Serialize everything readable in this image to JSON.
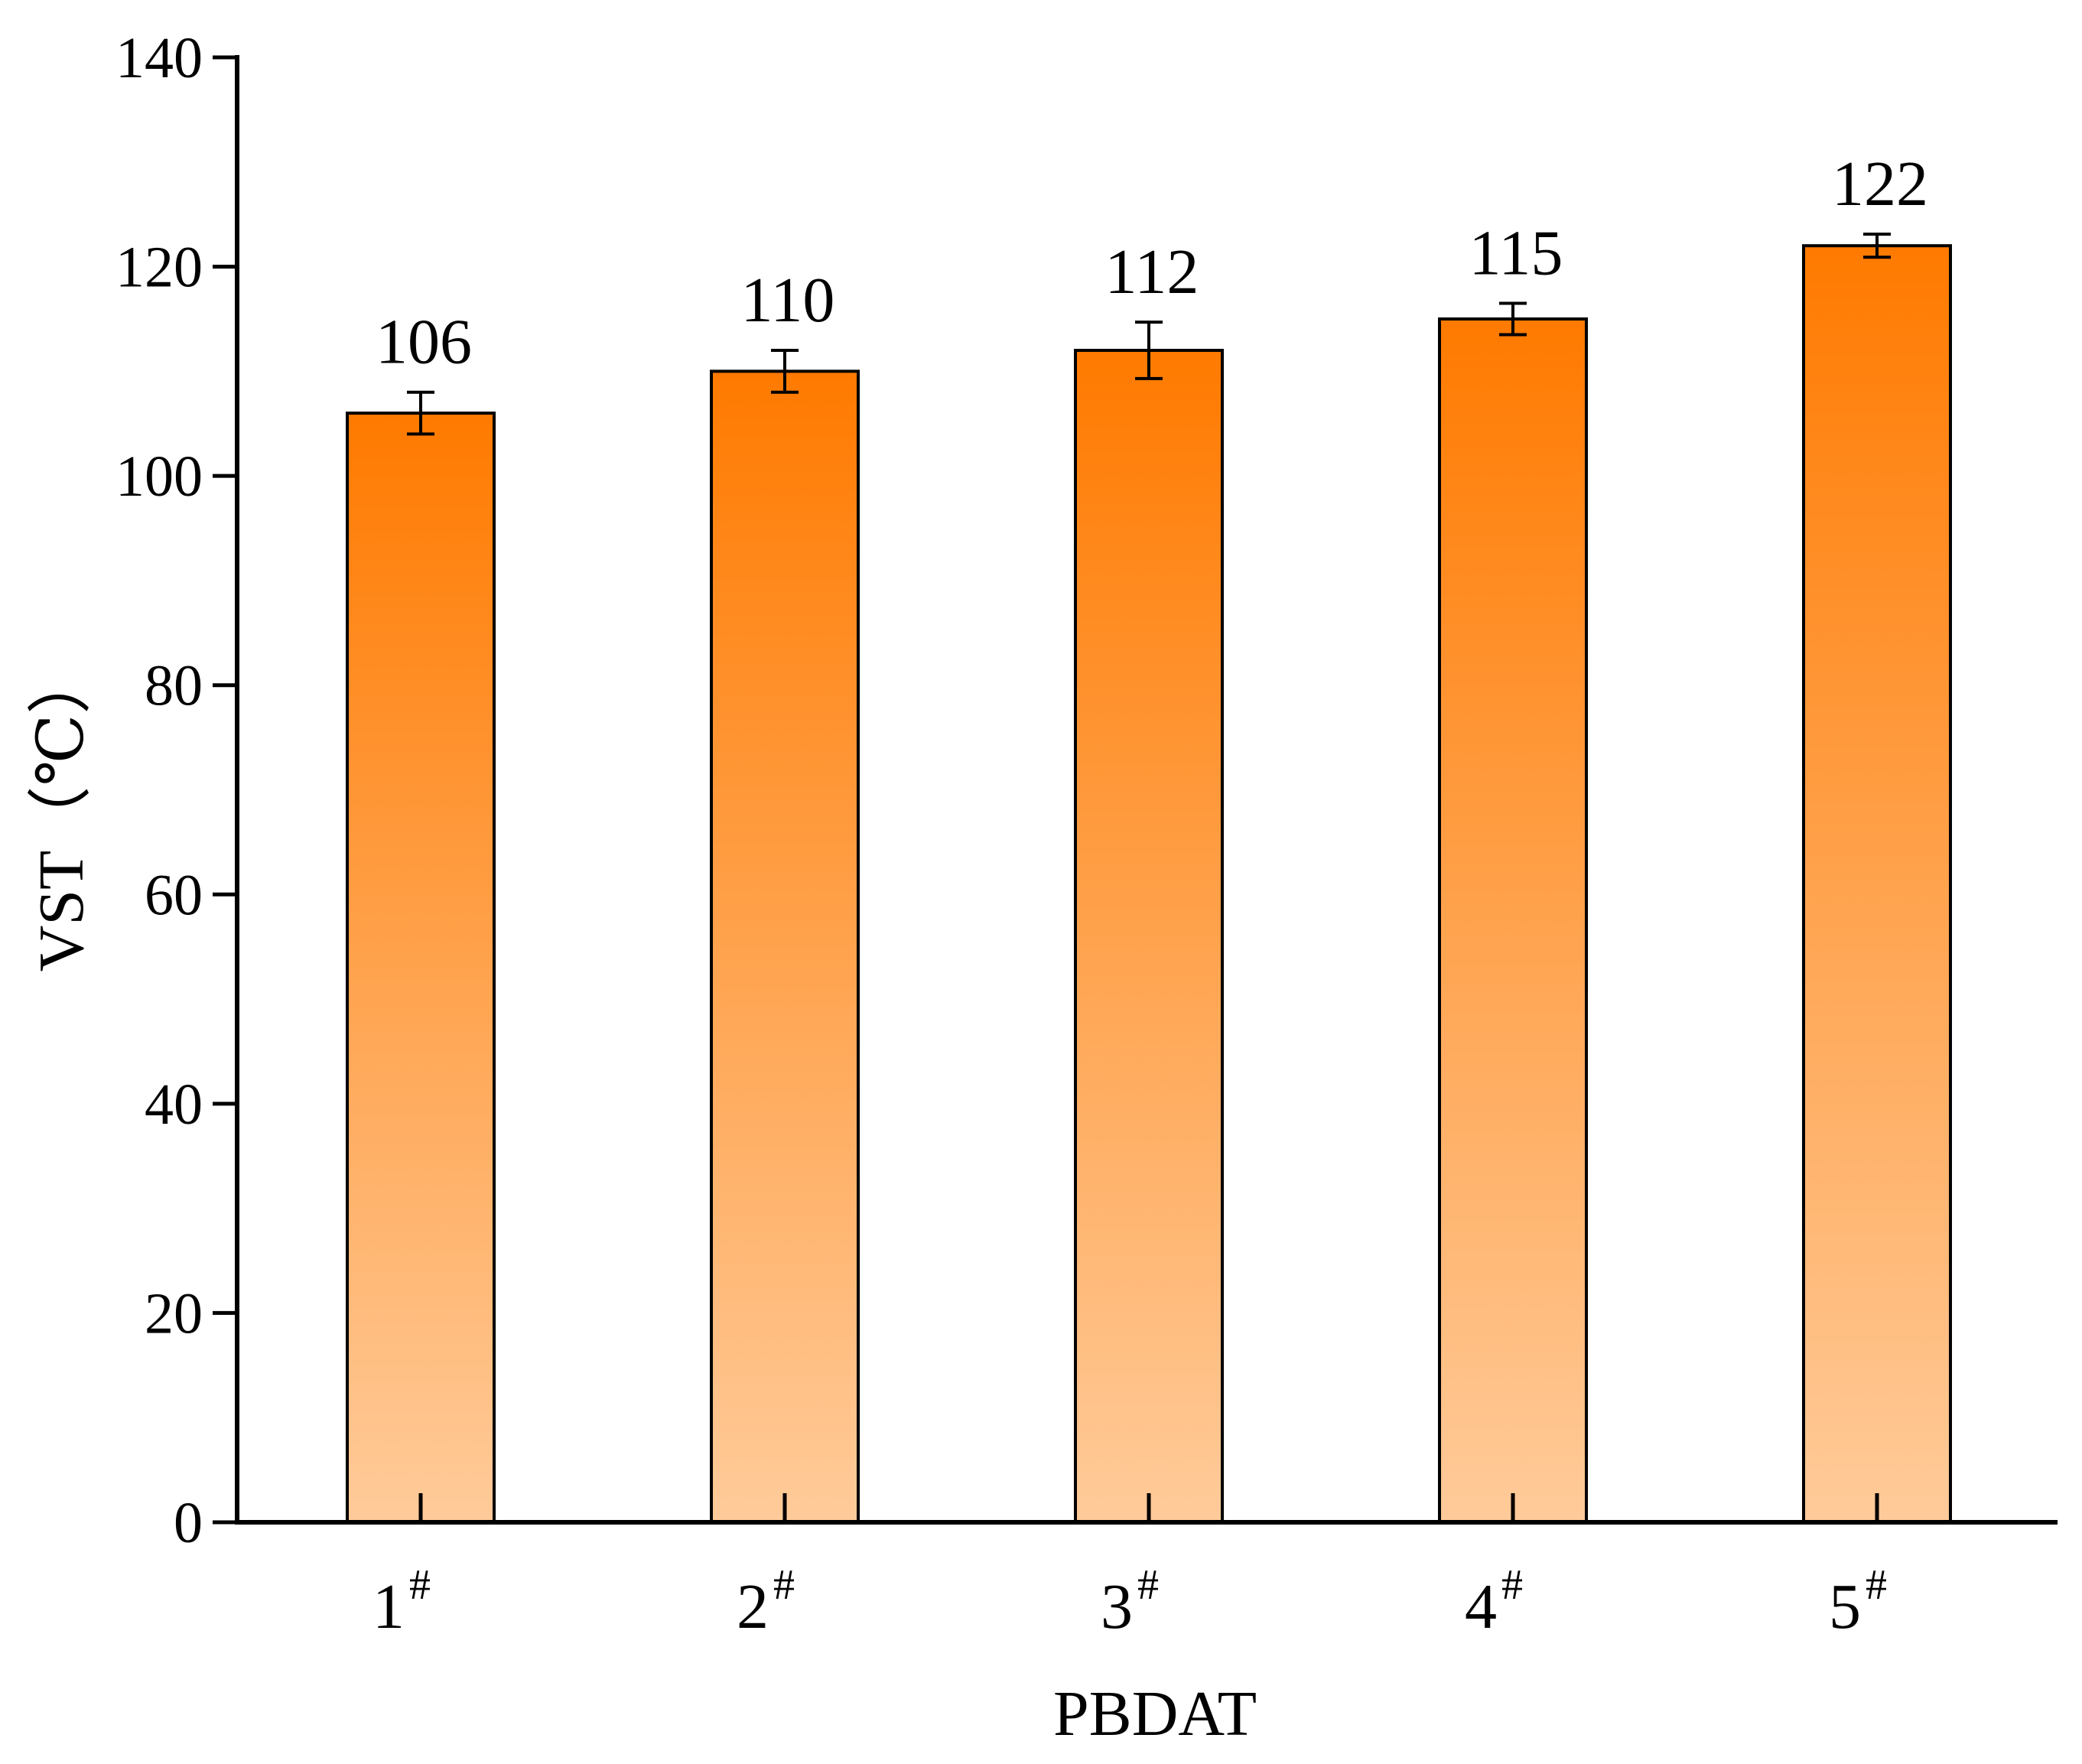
{
  "chart_data": {
    "type": "bar",
    "categories": [
      "1",
      "2",
      "3",
      "4",
      "5"
    ],
    "category_superscript": "#",
    "values": [
      106,
      110,
      112,
      115,
      122
    ],
    "errors": [
      2.0,
      2.0,
      2.7,
      1.5,
      1.1
    ],
    "value_labels": [
      "106",
      "110",
      "112",
      "115",
      "122"
    ],
    "xlabel": "PBDAT",
    "ylabel": "VST（℃）",
    "ylim": [
      0,
      140
    ],
    "yticks": [
      0,
      20,
      40,
      60,
      80,
      100,
      120,
      140
    ],
    "grid": false,
    "legend": "none",
    "colors": {
      "bar_top": "#ff7a00",
      "bar_bottom": "#ffcb9a",
      "bar_edge": "#000000",
      "axis": "#000000"
    }
  }
}
